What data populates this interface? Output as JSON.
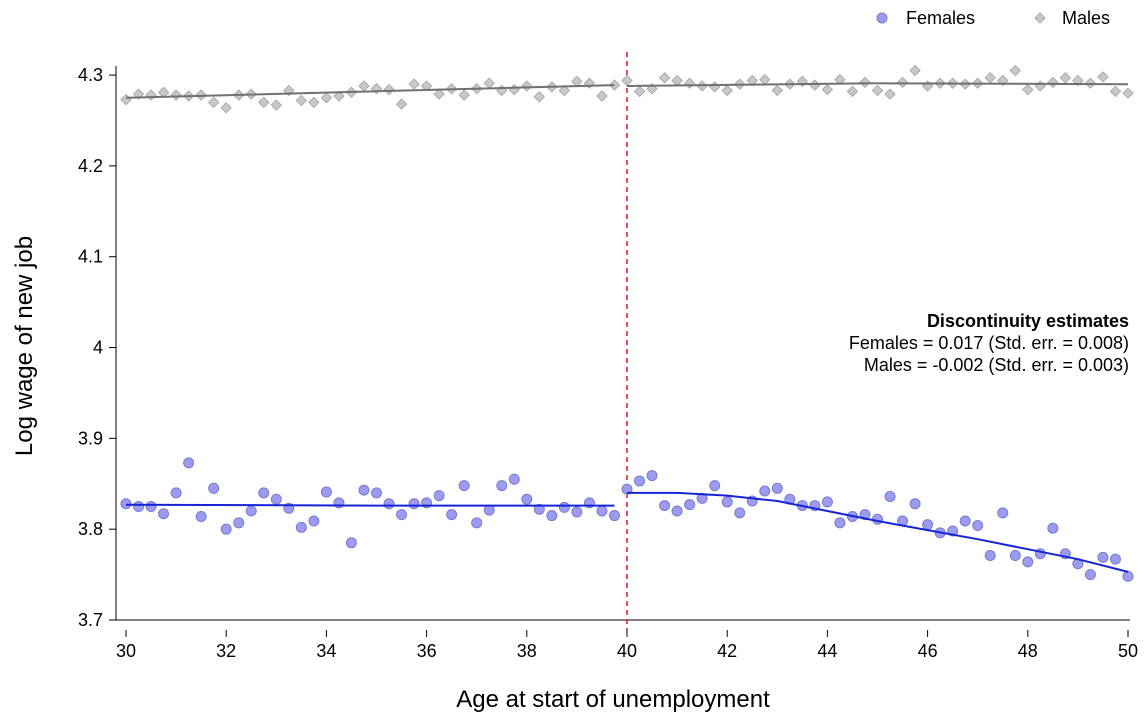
{
  "chart_data": {
    "type": "scatter",
    "xlabel": "Age at start of unemployment",
    "ylabel": "Log wage of new job",
    "xlim": [
      30,
      50
    ],
    "ylim": [
      3.7,
      4.31
    ],
    "x_ticks": [
      30,
      32,
      34,
      36,
      38,
      40,
      42,
      44,
      46,
      48,
      50
    ],
    "y_ticks": [
      3.7,
      3.8,
      3.9,
      4,
      4.1,
      4.2,
      4.3
    ],
    "y_tick_labels": [
      "3.7",
      "3.8",
      "3.9",
      "4",
      "4.1",
      "4.2",
      "4.3"
    ],
    "cutoff": 40,
    "cutoff_color": "#e8232b",
    "grid": false,
    "legend": {
      "position": "top-right",
      "entries": [
        "Females",
        "Males"
      ]
    },
    "annotation": {
      "title": "Discontinuity estimates",
      "lines": [
        "Females = 0.017 (Std. err. = 0.008)",
        "Males = -0.002 (Std. err. = 0.003)"
      ]
    },
    "series": [
      {
        "name": "Females",
        "marker": "circle",
        "color": "#9b9bf0",
        "edge_color": "#7a7ad0",
        "line_color": "#1424d6",
        "x": [
          30,
          30.25,
          30.5,
          30.75,
          31,
          31.25,
          31.5,
          31.75,
          32,
          32.25,
          32.5,
          32.75,
          33,
          33.25,
          33.5,
          33.75,
          34,
          34.25,
          34.5,
          34.75,
          35,
          35.25,
          35.5,
          35.75,
          36,
          36.25,
          36.5,
          36.75,
          37,
          37.25,
          37.5,
          37.75,
          38,
          38.25,
          38.5,
          38.75,
          39,
          39.25,
          39.5,
          39.75,
          40,
          40.25,
          40.5,
          40.75,
          41,
          41.25,
          41.5,
          41.75,
          42,
          42.25,
          42.5,
          42.75,
          43,
          43.25,
          43.5,
          43.75,
          44,
          44.25,
          44.5,
          44.75,
          45,
          45.25,
          45.5,
          45.75,
          46,
          46.25,
          46.5,
          46.75,
          47,
          47.25,
          47.5,
          47.75,
          48,
          48.25,
          48.5,
          48.75,
          49,
          49.25,
          49.5,
          49.75,
          50
        ],
        "y": [
          3.828,
          3.825,
          3.825,
          3.817,
          3.84,
          3.873,
          3.814,
          3.845,
          3.8,
          3.807,
          3.82,
          3.84,
          3.833,
          3.823,
          3.802,
          3.809,
          3.841,
          3.829,
          3.785,
          3.843,
          3.84,
          3.828,
          3.816,
          3.828,
          3.829,
          3.837,
          3.816,
          3.848,
          3.807,
          3.821,
          3.848,
          3.855,
          3.833,
          3.822,
          3.815,
          3.824,
          3.819,
          3.829,
          3.82,
          3.815,
          3.844,
          3.853,
          3.859,
          3.826,
          3.82,
          3.827,
          3.834,
          3.848,
          3.83,
          3.818,
          3.831,
          3.842,
          3.845,
          3.833,
          3.826,
          3.826,
          3.83,
          3.807,
          3.814,
          3.816,
          3.811,
          3.836,
          3.809,
          3.828,
          3.805,
          3.796,
          3.798,
          3.809,
          3.804,
          3.771,
          3.818,
          3.771,
          3.764,
          3.773,
          3.801,
          3.773,
          3.762,
          3.75,
          3.769,
          3.767,
          3.748
        ],
        "fit_left": {
          "x": [
            30,
            35,
            39.75
          ],
          "y": [
            3.827,
            3.826,
            3.826
          ]
        },
        "fit_right": {
          "x": [
            40,
            41,
            42,
            43,
            44,
            45,
            46,
            47,
            48,
            49,
            50
          ],
          "y": [
            3.84,
            3.84,
            3.837,
            3.831,
            3.82,
            3.809,
            3.799,
            3.789,
            3.778,
            3.767,
            3.753
          ]
        }
      },
      {
        "name": "Males",
        "marker": "diamond",
        "color": "#c8c8c8",
        "edge_color": "#a0a0a0",
        "line_color": "#707070",
        "x": [
          30,
          30.25,
          30.5,
          30.75,
          31,
          31.25,
          31.5,
          31.75,
          32,
          32.25,
          32.5,
          32.75,
          33,
          33.25,
          33.5,
          33.75,
          34,
          34.25,
          34.5,
          34.75,
          35,
          35.25,
          35.5,
          35.75,
          36,
          36.25,
          36.5,
          36.75,
          37,
          37.25,
          37.5,
          37.75,
          38,
          38.25,
          38.5,
          38.75,
          39,
          39.25,
          39.5,
          39.75,
          40,
          40.25,
          40.5,
          40.75,
          41,
          41.25,
          41.5,
          41.75,
          42,
          42.25,
          42.5,
          42.75,
          43,
          43.25,
          43.5,
          43.75,
          44,
          44.25,
          44.5,
          44.75,
          45,
          45.25,
          45.5,
          45.75,
          46,
          46.25,
          46.5,
          46.75,
          47,
          47.25,
          47.5,
          47.75,
          48,
          48.25,
          48.5,
          48.75,
          49,
          49.25,
          49.5,
          49.75,
          50
        ],
        "y": [
          4.273,
          4.279,
          4.278,
          4.281,
          4.278,
          4.277,
          4.278,
          4.27,
          4.264,
          4.278,
          4.279,
          4.27,
          4.267,
          4.283,
          4.272,
          4.27,
          4.275,
          4.277,
          4.281,
          4.288,
          4.285,
          4.284,
          4.268,
          4.29,
          4.288,
          4.279,
          4.285,
          4.278,
          4.285,
          4.291,
          4.283,
          4.284,
          4.288,
          4.276,
          4.287,
          4.283,
          4.293,
          4.291,
          4.277,
          4.289,
          4.294,
          4.282,
          4.285,
          4.297,
          4.294,
          4.291,
          4.288,
          4.287,
          4.283,
          4.29,
          4.294,
          4.295,
          4.283,
          4.29,
          4.293,
          4.289,
          4.284,
          4.295,
          4.282,
          4.292,
          4.283,
          4.279,
          4.292,
          4.305,
          4.288,
          4.291,
          4.291,
          4.29,
          4.291,
          4.297,
          4.294,
          4.305,
          4.284,
          4.288,
          4.292,
          4.297,
          4.294,
          4.291,
          4.298,
          4.282,
          4.28
        ],
        "fit_left": {
          "x": [
            30,
            39.75
          ],
          "y": [
            4.275,
            4.289
          ]
        },
        "fit_right": {
          "x": [
            40,
            45,
            50
          ],
          "y": [
            4.288,
            4.291,
            4.29
          ]
        }
      }
    ]
  }
}
